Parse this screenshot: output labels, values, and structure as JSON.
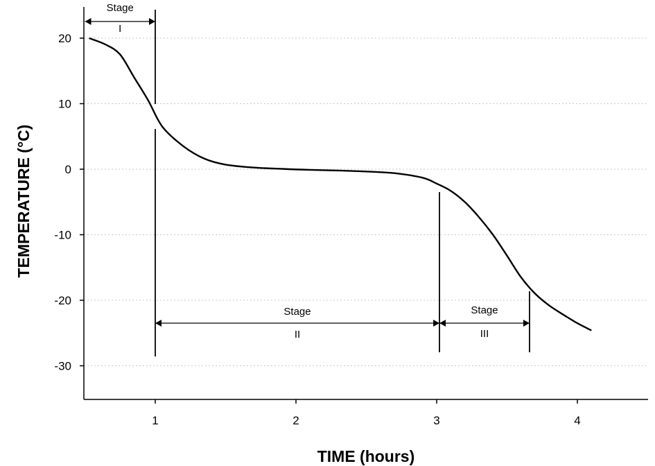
{
  "chart_data": {
    "type": "line",
    "title": "",
    "xlabel": "TIME (hours)",
    "ylabel": "TEMPERATURE (°C)",
    "xlim": [
      0.5,
      5.5
    ],
    "ylim": [
      -35,
      25
    ],
    "xticks": [
      1,
      2,
      3,
      4
    ],
    "yticks": [
      20,
      10,
      0,
      -10,
      -20,
      -30
    ],
    "grid": true,
    "series": [
      {
        "x": [
          0.53,
          0.65,
          0.75,
          0.85,
          0.95,
          1.05,
          1.2,
          1.35,
          1.5,
          1.7,
          1.9,
          2.1,
          2.3,
          2.5,
          2.7,
          2.9,
          3.0,
          3.1,
          3.2,
          3.3,
          3.4,
          3.5,
          3.6,
          3.7,
          3.8,
          3.9,
          4.0,
          4.1
        ],
        "y": [
          20,
          19,
          17.5,
          14,
          10.5,
          6.5,
          3.5,
          1.6,
          0.7,
          0.25,
          0.05,
          -0.1,
          -0.2,
          -0.35,
          -0.6,
          -1.3,
          -2.2,
          -3.3,
          -5,
          -7.3,
          -10,
          -13.2,
          -16.5,
          -19,
          -20.8,
          -22.2,
          -23.5,
          -24.6
        ]
      }
    ],
    "stages": [
      {
        "label": "Stage",
        "numeral": "I",
        "start": 0.5,
        "end": 1.0
      },
      {
        "label": "Stage",
        "numeral": "II",
        "start": 1.0,
        "end": 3.02
      },
      {
        "label": "Stage",
        "numeral": "III",
        "start": 3.02,
        "end": 3.66
      }
    ]
  }
}
